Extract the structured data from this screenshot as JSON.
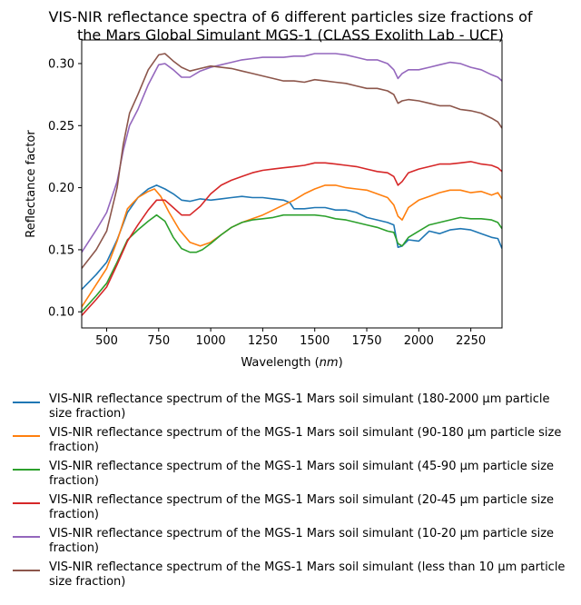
{
  "chart_data": {
    "type": "line",
    "title": "VIS-NIR reflectance spectra of 6 different particles size fractions of the Mars Global Simulant MGS-1 (CLASS Exolith Lab - UCF)",
    "title_lines": [
      "VIS-NIR reflectance spectra of 6 different particles size fractions of",
      "the Mars Global Simulant MGS-1 (CLASS Exolith Lab - UCF)"
    ],
    "xlabel": "Wavelength (nm)",
    "ylabel": "Reflectance factor",
    "xlim": [
      380,
      2400
    ],
    "ylim": [
      0.087,
      0.319
    ],
    "xticks": [
      500,
      750,
      1000,
      1250,
      1500,
      1750,
      2000,
      2250
    ],
    "yticks": [
      0.1,
      0.15,
      0.2,
      0.25,
      0.3
    ],
    "ytick_labels": [
      "0.10",
      "0.15",
      "0.20",
      "0.25",
      "0.30"
    ],
    "grid": false,
    "legend_position": "below",
    "series": [
      {
        "name": "VIS-NIR reflectance spectrum of the MGS-1 Mars soil simulant (180-2000 µm particle size fraction)",
        "color": "#1f77b4",
        "x": [
          380,
          450,
          500,
          550,
          600,
          650,
          700,
          740,
          780,
          820,
          860,
          900,
          950,
          1000,
          1050,
          1100,
          1150,
          1200,
          1250,
          1300,
          1350,
          1380,
          1400,
          1450,
          1500,
          1550,
          1600,
          1650,
          1700,
          1750,
          1800,
          1850,
          1880,
          1900,
          1920,
          1950,
          2000,
          2050,
          2100,
          2150,
          2200,
          2250,
          2300,
          2350,
          2380,
          2400
        ],
        "y": [
          0.118,
          0.13,
          0.14,
          0.158,
          0.18,
          0.192,
          0.199,
          0.202,
          0.199,
          0.195,
          0.19,
          0.189,
          0.191,
          0.19,
          0.191,
          0.192,
          0.193,
          0.192,
          0.192,
          0.191,
          0.19,
          0.188,
          0.183,
          0.183,
          0.184,
          0.184,
          0.182,
          0.182,
          0.18,
          0.176,
          0.174,
          0.172,
          0.17,
          0.152,
          0.153,
          0.158,
          0.157,
          0.165,
          0.163,
          0.166,
          0.167,
          0.166,
          0.163,
          0.16,
          0.159,
          0.151
        ]
      },
      {
        "name": "VIS-NIR reflectance spectrum of the MGS-1 Mars soil simulant (90-180 µm particle size fraction)",
        "color": "#ff7f0e",
        "x": [
          380,
          450,
          500,
          550,
          600,
          650,
          700,
          730,
          760,
          800,
          850,
          900,
          950,
          1000,
          1050,
          1100,
          1150,
          1200,
          1250,
          1300,
          1350,
          1400,
          1450,
          1500,
          1550,
          1600,
          1650,
          1700,
          1750,
          1800,
          1850,
          1880,
          1900,
          1920,
          1950,
          2000,
          2050,
          2100,
          2150,
          2200,
          2250,
          2300,
          2350,
          2380,
          2400
        ],
        "y": [
          0.104,
          0.122,
          0.135,
          0.157,
          0.183,
          0.192,
          0.197,
          0.199,
          0.193,
          0.18,
          0.166,
          0.156,
          0.153,
          0.156,
          0.162,
          0.168,
          0.172,
          0.175,
          0.178,
          0.182,
          0.186,
          0.19,
          0.195,
          0.199,
          0.202,
          0.202,
          0.2,
          0.199,
          0.198,
          0.195,
          0.192,
          0.186,
          0.177,
          0.174,
          0.184,
          0.19,
          0.193,
          0.196,
          0.198,
          0.198,
          0.196,
          0.197,
          0.194,
          0.196,
          0.191
        ]
      },
      {
        "name": "VIS-NIR reflectance spectrum of the MGS-1 Mars soil simulant (45-90 µm particle size fraction)",
        "color": "#2ca02c",
        "x": [
          380,
          450,
          500,
          550,
          600,
          650,
          700,
          740,
          780,
          820,
          860,
          900,
          930,
          960,
          1000,
          1050,
          1100,
          1150,
          1200,
          1250,
          1300,
          1350,
          1400,
          1450,
          1500,
          1550,
          1600,
          1650,
          1700,
          1750,
          1800,
          1850,
          1880,
          1900,
          1920,
          1950,
          2000,
          2050,
          2100,
          2150,
          2200,
          2250,
          2300,
          2350,
          2380,
          2400
        ],
        "y": [
          0.1,
          0.113,
          0.123,
          0.14,
          0.158,
          0.166,
          0.173,
          0.178,
          0.173,
          0.16,
          0.151,
          0.148,
          0.148,
          0.15,
          0.155,
          0.162,
          0.168,
          0.172,
          0.174,
          0.175,
          0.176,
          0.178,
          0.178,
          0.178,
          0.178,
          0.177,
          0.175,
          0.174,
          0.172,
          0.17,
          0.168,
          0.165,
          0.164,
          0.155,
          0.153,
          0.16,
          0.165,
          0.17,
          0.172,
          0.174,
          0.176,
          0.175,
          0.175,
          0.174,
          0.172,
          0.167
        ]
      },
      {
        "name": "VIS-NIR reflectance spectrum of the MGS-1 Mars soil simulant (20-45 µm particle size fraction)",
        "color": "#d62728",
        "x": [
          380,
          450,
          500,
          550,
          600,
          650,
          700,
          740,
          780,
          820,
          860,
          900,
          950,
          1000,
          1050,
          1100,
          1150,
          1200,
          1250,
          1300,
          1350,
          1400,
          1450,
          1500,
          1550,
          1600,
          1650,
          1700,
          1750,
          1800,
          1850,
          1880,
          1900,
          1920,
          1950,
          2000,
          2050,
          2100,
          2150,
          2200,
          2250,
          2300,
          2350,
          2380,
          2400
        ],
        "y": [
          0.097,
          0.11,
          0.12,
          0.138,
          0.157,
          0.17,
          0.182,
          0.19,
          0.19,
          0.184,
          0.178,
          0.178,
          0.185,
          0.195,
          0.202,
          0.206,
          0.209,
          0.212,
          0.214,
          0.215,
          0.216,
          0.217,
          0.218,
          0.22,
          0.22,
          0.219,
          0.218,
          0.217,
          0.215,
          0.213,
          0.212,
          0.209,
          0.202,
          0.205,
          0.212,
          0.215,
          0.217,
          0.219,
          0.219,
          0.22,
          0.221,
          0.219,
          0.218,
          0.216,
          0.213
        ]
      },
      {
        "name": "VIS-NIR reflectance spectrum of the MGS-1 Mars soil simulant (10-20 µm particle size fraction)",
        "color": "#9467bd",
        "x": [
          380,
          450,
          500,
          550,
          580,
          610,
          650,
          700,
          750,
          780,
          820,
          860,
          900,
          950,
          1000,
          1050,
          1100,
          1150,
          1200,
          1250,
          1300,
          1350,
          1400,
          1450,
          1500,
          1550,
          1600,
          1650,
          1700,
          1750,
          1800,
          1850,
          1880,
          1900,
          1920,
          1950,
          2000,
          2050,
          2100,
          2150,
          2200,
          2250,
          2300,
          2350,
          2380,
          2400
        ],
        "y": [
          0.148,
          0.166,
          0.18,
          0.205,
          0.23,
          0.25,
          0.263,
          0.283,
          0.299,
          0.3,
          0.295,
          0.289,
          0.289,
          0.294,
          0.297,
          0.299,
          0.301,
          0.303,
          0.304,
          0.305,
          0.305,
          0.305,
          0.306,
          0.306,
          0.308,
          0.308,
          0.308,
          0.307,
          0.305,
          0.303,
          0.303,
          0.3,
          0.295,
          0.288,
          0.292,
          0.295,
          0.295,
          0.297,
          0.299,
          0.301,
          0.3,
          0.297,
          0.295,
          0.291,
          0.289,
          0.286
        ]
      },
      {
        "name": "VIS-NIR reflectance spectrum of the MGS-1 Mars soil simulant (less than 10 µm particle size fraction)",
        "color": "#8c564b",
        "x": [
          380,
          450,
          500,
          550,
          580,
          610,
          650,
          700,
          750,
          780,
          820,
          860,
          900,
          950,
          1000,
          1050,
          1100,
          1150,
          1200,
          1250,
          1300,
          1350,
          1400,
          1450,
          1500,
          1550,
          1600,
          1650,
          1700,
          1750,
          1800,
          1850,
          1880,
          1900,
          1920,
          1950,
          2000,
          2050,
          2100,
          2150,
          2200,
          2250,
          2300,
          2350,
          2380,
          2400
        ],
        "y": [
          0.135,
          0.15,
          0.165,
          0.2,
          0.235,
          0.26,
          0.275,
          0.295,
          0.307,
          0.308,
          0.302,
          0.297,
          0.294,
          0.296,
          0.298,
          0.297,
          0.296,
          0.294,
          0.292,
          0.29,
          0.288,
          0.286,
          0.286,
          0.285,
          0.287,
          0.286,
          0.285,
          0.284,
          0.282,
          0.28,
          0.28,
          0.278,
          0.275,
          0.268,
          0.27,
          0.271,
          0.27,
          0.268,
          0.266,
          0.266,
          0.263,
          0.262,
          0.26,
          0.256,
          0.253,
          0.248
        ]
      }
    ]
  }
}
